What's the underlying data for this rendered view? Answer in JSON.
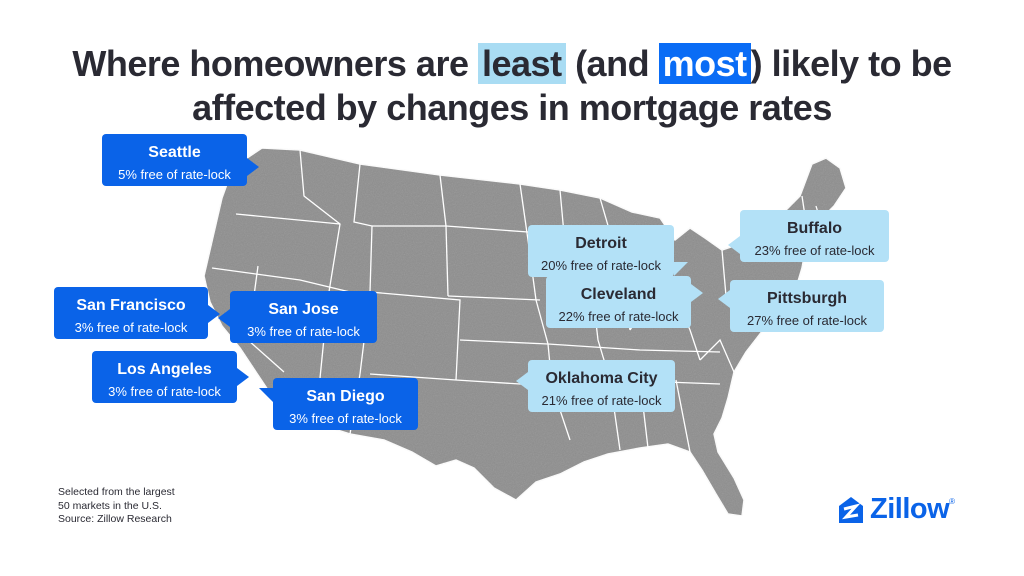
{
  "title": {
    "line1_pre": "Where homeowners are ",
    "highlight_least": "least",
    "line1_mid": " (and ",
    "highlight_most": "most",
    "line1_post": ") likely to be",
    "line2": "affected by changes in mortgage rates"
  },
  "colors": {
    "least_highlight": "#0a63e8",
    "most_highlight": "#b3e1f7",
    "map_fill": "#8e8e8e",
    "brand": "#0a63e8"
  },
  "cities": [
    {
      "id": "seattle",
      "name": "Seattle",
      "stat": "5% free of rate-lock",
      "group": "least"
    },
    {
      "id": "san-francisco",
      "name": "San Francisco",
      "stat": "3% free of rate-lock",
      "group": "least"
    },
    {
      "id": "san-jose",
      "name": "San Jose",
      "stat": "3% free of rate-lock",
      "group": "least"
    },
    {
      "id": "los-angeles",
      "name": "Los Angeles",
      "stat": "3% free of rate-lock",
      "group": "least"
    },
    {
      "id": "san-diego",
      "name": "San Diego",
      "stat": "3% free of rate-lock",
      "group": "least"
    },
    {
      "id": "detroit",
      "name": "Detroit",
      "stat": "20% free of rate-lock",
      "group": "most"
    },
    {
      "id": "cleveland",
      "name": "Cleveland",
      "stat": "22% free of rate-lock",
      "group": "most"
    },
    {
      "id": "buffalo",
      "name": "Buffalo",
      "stat": "23% free of rate-lock",
      "group": "most"
    },
    {
      "id": "pittsburgh",
      "name": "Pittsburgh",
      "stat": "27% free of rate-lock",
      "group": "most"
    },
    {
      "id": "oklahoma-city",
      "name": "Oklahoma City",
      "stat": "21% free of rate-lock",
      "group": "most"
    }
  ],
  "footnote": {
    "line1": "Selected from the largest",
    "line2": "50 markets in the U.S.",
    "line3": "Source: Zillow Research"
  },
  "logo": {
    "text": "Zillow",
    "icon": "zillow-house-icon"
  }
}
